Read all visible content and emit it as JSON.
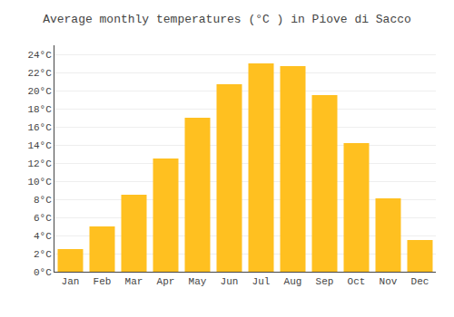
{
  "chart_data": {
    "type": "bar",
    "title": "Average monthly temperatures (°C ) in Piove di Sacco",
    "categories": [
      "Jan",
      "Feb",
      "Mar",
      "Apr",
      "May",
      "Jun",
      "Jul",
      "Aug",
      "Sep",
      "Oct",
      "Nov",
      "Dec"
    ],
    "values": [
      2.5,
      5.0,
      8.5,
      12.5,
      17.0,
      20.7,
      23.0,
      22.7,
      19.5,
      14.2,
      8.1,
      3.5
    ],
    "color": "#FFC020",
    "ylim": [
      0,
      25
    ],
    "yticks": [
      {
        "value": 0,
        "label": "0°C"
      },
      {
        "value": 2,
        "label": "2°C"
      },
      {
        "value": 4,
        "label": "4°C"
      },
      {
        "value": 6,
        "label": "6°C"
      },
      {
        "value": 8,
        "label": "8°C"
      },
      {
        "value": 10,
        "label": "10°C"
      },
      {
        "value": 12,
        "label": "12°C"
      },
      {
        "value": 14,
        "label": "14°C"
      },
      {
        "value": 16,
        "label": "16°C"
      },
      {
        "value": 18,
        "label": "18°C"
      },
      {
        "value": 20,
        "label": "20°C"
      },
      {
        "value": 22,
        "label": "22°C"
      },
      {
        "value": 24,
        "label": "24°C"
      }
    ],
    "grid": true
  }
}
